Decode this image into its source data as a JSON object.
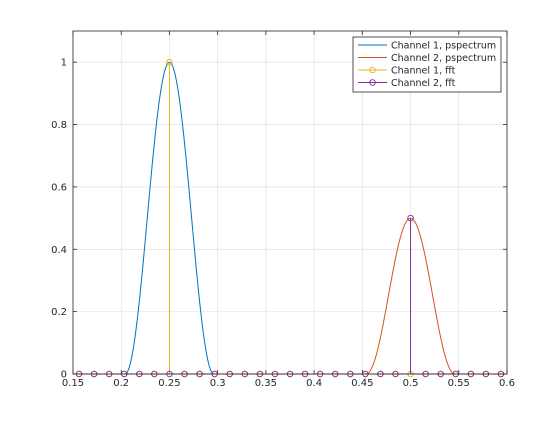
{
  "chart_data": {
    "type": "line",
    "title": "",
    "xlabel": "",
    "ylabel": "",
    "xlim": [
      0.15,
      0.6
    ],
    "ylim": [
      0,
      1.1
    ],
    "xticks": [
      "0.15",
      "0.2",
      "0.25",
      "0.3",
      "0.35",
      "0.4",
      "0.45",
      "0.5",
      "0.55",
      "0.6"
    ],
    "yticks": [
      "0",
      "0.2",
      "0.4",
      "0.6",
      "0.8",
      "1"
    ],
    "grid": true,
    "legend_position": "top-right",
    "series": [
      {
        "name": "Channel 1, pspectrum",
        "kind": "curve",
        "color": "#0072BD",
        "peak_x": 0.25,
        "peak_y": 1.0,
        "x_start": 0.204,
        "x_end": 0.296
      },
      {
        "name": "Channel 2, pspectrum",
        "kind": "curve",
        "color": "#D95319",
        "peak_x": 0.5,
        "peak_y": 0.5,
        "x_start": 0.454,
        "x_end": 0.546
      },
      {
        "name": "Channel 1, fft",
        "kind": "stem",
        "color": "#EDB120",
        "x": [
          0.15625,
          0.171875,
          0.1875,
          0.203125,
          0.21875,
          0.234375,
          0.25,
          0.265625,
          0.28125,
          0.296875,
          0.3125,
          0.328125,
          0.34375,
          0.359375,
          0.375,
          0.390625,
          0.40625,
          0.421875,
          0.4375,
          0.453125,
          0.46875,
          0.484375,
          0.5,
          0.515625,
          0.53125,
          0.546875,
          0.5625,
          0.578125,
          0.59375
        ],
        "y": [
          0,
          0,
          0,
          0,
          0,
          0,
          1.0,
          0,
          0,
          0,
          0,
          0,
          0,
          0,
          0,
          0,
          0,
          0,
          0,
          0,
          0,
          0,
          0,
          0,
          0,
          0,
          0,
          0,
          0
        ]
      },
      {
        "name": "Channel 2, fft",
        "kind": "stem",
        "color": "#7E2F8E",
        "x": [
          0.15625,
          0.171875,
          0.1875,
          0.203125,
          0.21875,
          0.234375,
          0.25,
          0.265625,
          0.28125,
          0.296875,
          0.3125,
          0.328125,
          0.34375,
          0.359375,
          0.375,
          0.390625,
          0.40625,
          0.421875,
          0.4375,
          0.453125,
          0.46875,
          0.484375,
          0.5,
          0.515625,
          0.53125,
          0.546875,
          0.5625,
          0.578125,
          0.59375
        ],
        "y": [
          0,
          0,
          0,
          0,
          0,
          0,
          0,
          0,
          0,
          0,
          0,
          0,
          0,
          0,
          0,
          0,
          0,
          0,
          0,
          0,
          0,
          0,
          0.5,
          0,
          0,
          0,
          0,
          0,
          0
        ]
      }
    ]
  }
}
